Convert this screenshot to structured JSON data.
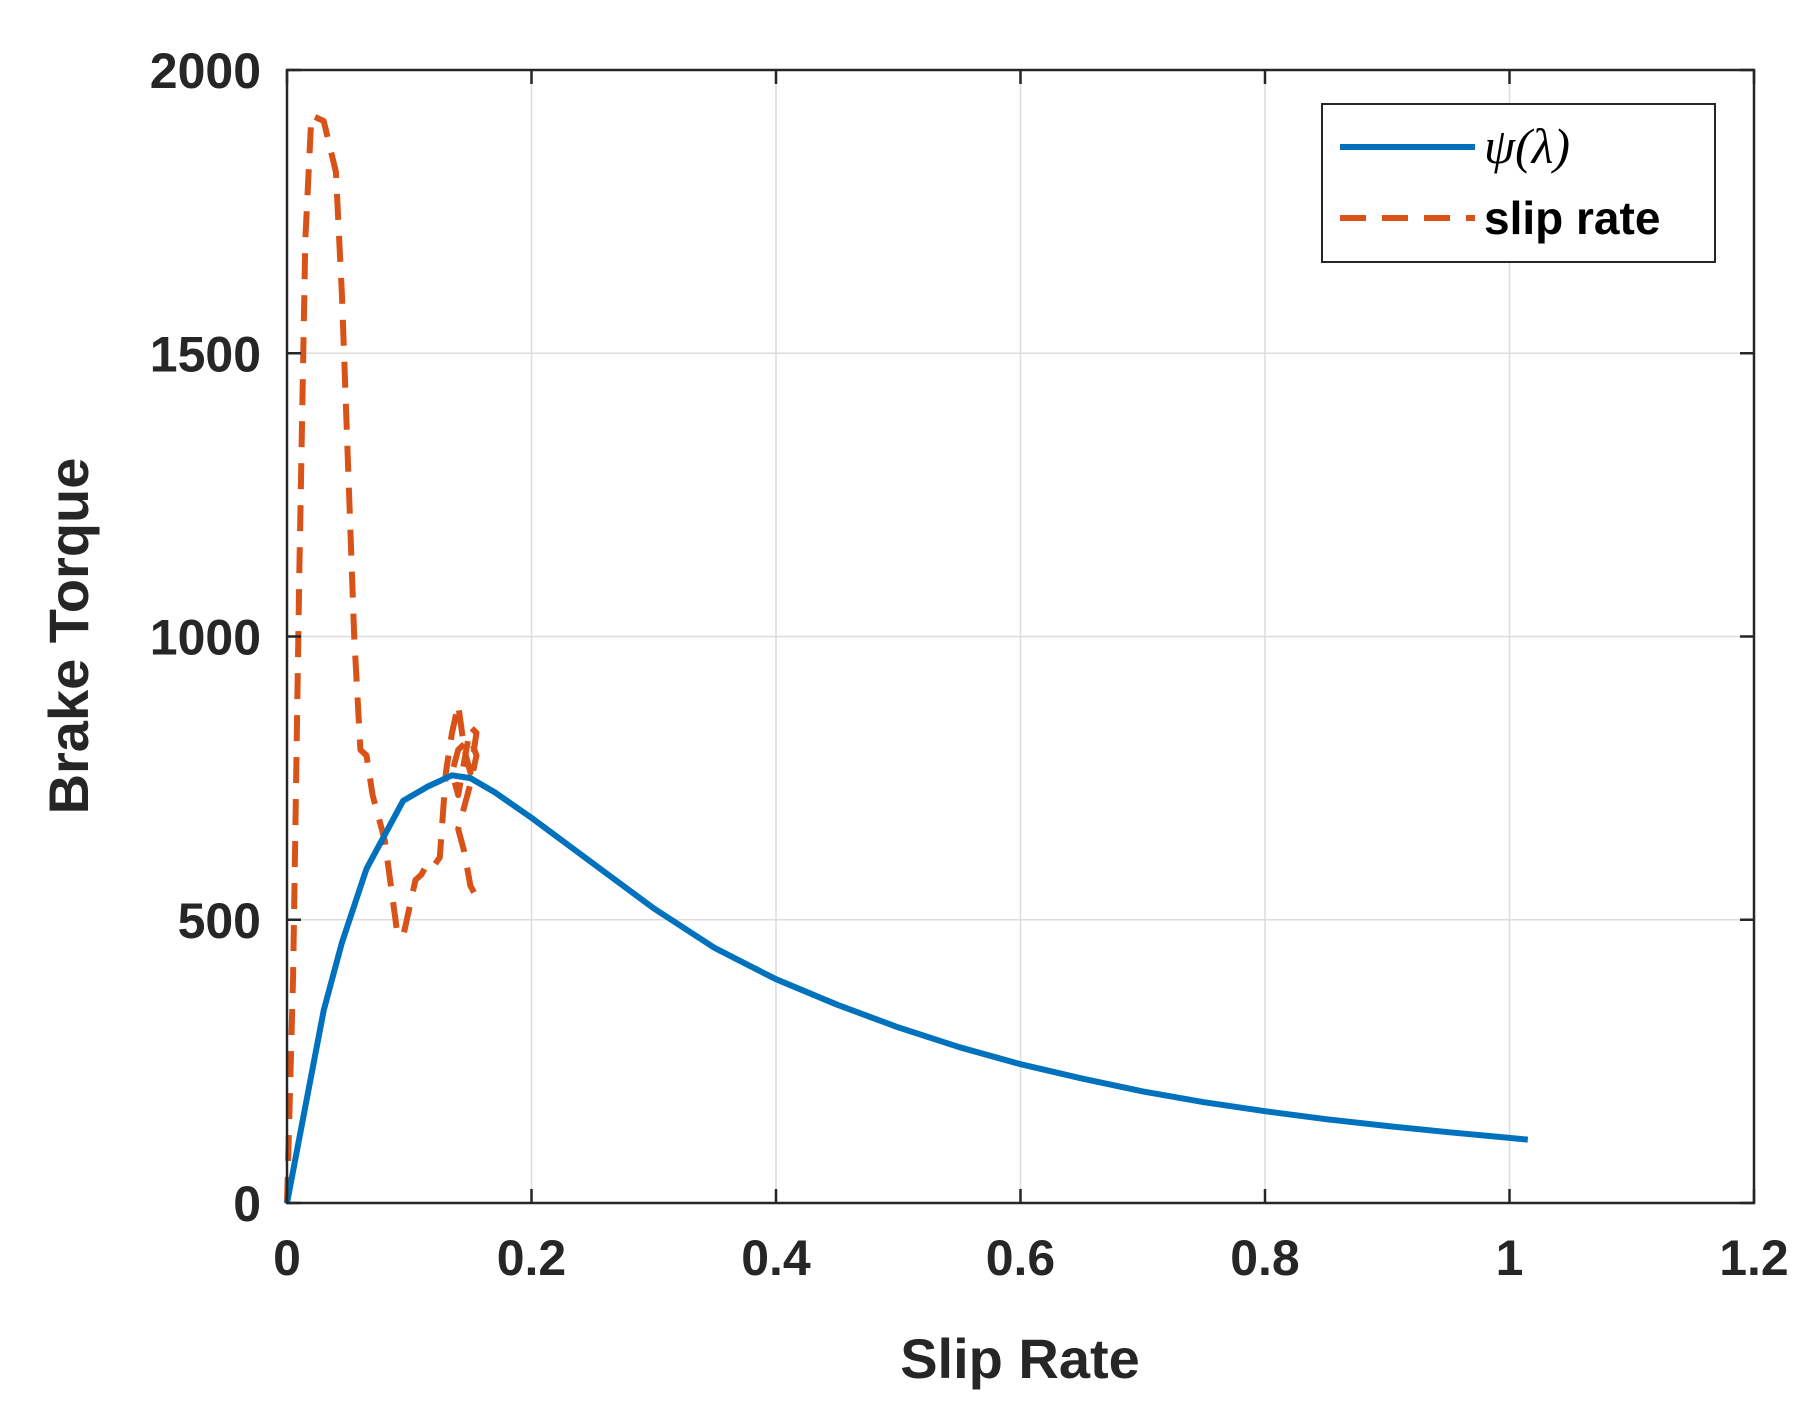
{
  "chart_data": {
    "type": "line",
    "title": "",
    "xlabel": "Slip Rate",
    "ylabel": "Brake Torque",
    "xlim": [
      0,
      1.2
    ],
    "ylim": [
      0,
      2000
    ],
    "xticks": [
      0,
      0.2,
      0.4,
      0.6,
      0.8,
      1,
      1.2
    ],
    "xtick_labels": [
      "0",
      "0.2",
      "0.4",
      "0.6",
      "0.8",
      "1",
      "1.2"
    ],
    "yticks": [
      0,
      500,
      1000,
      1500,
      2000
    ],
    "ytick_labels": [
      "0",
      "500",
      "1000",
      "1500",
      "2000"
    ],
    "grid": true,
    "legend_position": "top-right",
    "series": [
      {
        "name": "ψ(λ)",
        "legend_label": "ψ(λ)",
        "style": "solid",
        "color": "#0072BD",
        "x": [
          0,
          0.015,
          0.03,
          0.045,
          0.065,
          0.095,
          0.115,
          0.135,
          0.15,
          0.17,
          0.2,
          0.25,
          0.3,
          0.35,
          0.4,
          0.45,
          0.5,
          0.55,
          0.6,
          0.65,
          0.7,
          0.75,
          0.8,
          0.85,
          0.9,
          0.95,
          1.0,
          1.015
        ],
        "y": [
          0,
          170,
          340,
          460,
          590,
          710,
          735,
          755,
          750,
          725,
          680,
          600,
          520,
          450,
          395,
          350,
          310,
          275,
          245,
          220,
          197,
          178,
          162,
          148,
          136,
          125,
          115,
          112
        ]
      },
      {
        "name": "slip rate",
        "legend_label": "slip rate",
        "style": "dashed",
        "color": "#D95319",
        "x": [
          0,
          0.005,
          0.01,
          0.015,
          0.02,
          0.03,
          0.04,
          0.045,
          0.05,
          0.055,
          0.06,
          0.065,
          0.07,
          0.08,
          0.085,
          0.09,
          0.095,
          0.1,
          0.105,
          0.11,
          0.115,
          0.12,
          0.125,
          0.13,
          0.135,
          0.14,
          0.145,
          0.15,
          0.155,
          0.15,
          0.145,
          0.14,
          0.135,
          0.14,
          0.15,
          0.155,
          0.15,
          0.145,
          0.14,
          0.145,
          0.15,
          0.155
        ],
        "y": [
          0,
          400,
          1100,
          1700,
          1920,
          1910,
          1820,
          1600,
          1300,
          1000,
          800,
          790,
          720,
          640,
          560,
          480,
          470,
          520,
          570,
          580,
          600,
          595,
          610,
          760,
          830,
          880,
          800,
          760,
          830,
          840,
          780,
          720,
          760,
          800,
          820,
          790,
          740,
          700,
          660,
          620,
          560,
          540
        ]
      }
    ]
  }
}
